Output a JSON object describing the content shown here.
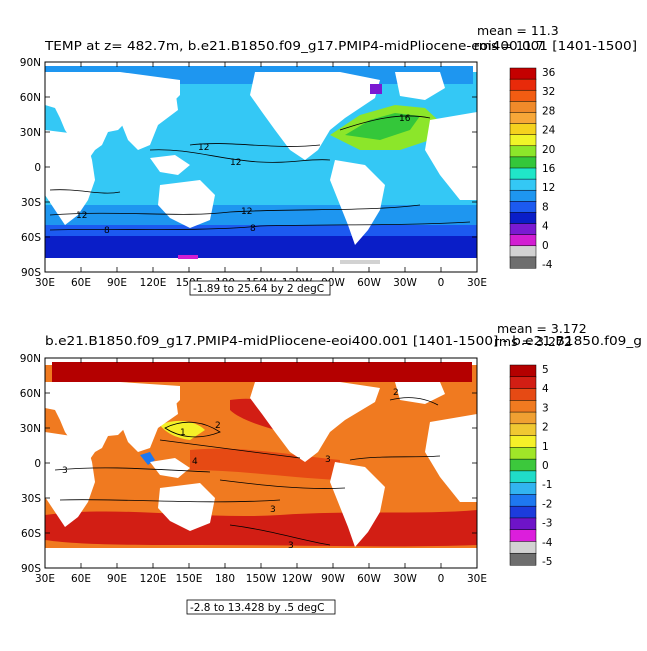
{
  "chart_data": [
    {
      "type": "heatmap",
      "title": "TEMP at z= 482.7m, b.e21.B1850.f09_g17.PMIP4-midPliocene-eoi400.001 [1401-1500]",
      "stats": {
        "mean": "mean = 11.3",
        "rms": "rms = 11.7"
      },
      "range_note": "-1.89 to 25.64 by 2 degC",
      "x_ticks": [
        "30E",
        "60E",
        "90E",
        "120E",
        "150E",
        "180",
        "150W",
        "120W",
        "90W",
        "60W",
        "30W",
        "0",
        "30E"
      ],
      "y_ticks": [
        "90N",
        "60N",
        "30N",
        "0",
        "30S",
        "60S",
        "90S"
      ],
      "xlim_deg_east": [
        30,
        390
      ],
      "ylim_deg_north": [
        -90,
        90
      ],
      "colorbar": {
        "labels": [
          "36",
          "32",
          "28",
          "24",
          "20",
          "16",
          "12",
          "8",
          "4",
          "0",
          "-4"
        ],
        "colors": [
          "#C40000",
          "#E82A0A",
          "#F25C12",
          "#F08A2A",
          "#F7A738",
          "#F5D21E",
          "#F0F528",
          "#8CE62A",
          "#34C73A",
          "#20E6C8",
          "#34C8F5",
          "#1E96F0",
          "#1C5AF0",
          "#0A1EC8",
          "#7A1AD2",
          "#D21ED2",
          "#D2D2D2",
          "#6E6E6E"
        ],
        "color_note": "colors listed top to bottom"
      },
      "contour_labels": [
        "16",
        "12",
        "12",
        "12",
        "12",
        "8",
        "8"
      ]
    },
    {
      "type": "heatmap",
      "title": "b.e21.B1850.f09_g17.PMIP4-midPliocene-eoi400.001 [1401-1500] - b.e21.B1850.f09_g",
      "stats": {
        "mean": "mean = 3.172",
        "rms": "rms = 3.272"
      },
      "range_note": "-2.8 to 13.428 by .5 degC",
      "x_ticks": [
        "30E",
        "60E",
        "90E",
        "120E",
        "150E",
        "180",
        "150W",
        "120W",
        "90W",
        "60W",
        "30W",
        "0",
        "30E"
      ],
      "y_ticks": [
        "90N",
        "60N",
        "30N",
        "0",
        "30S",
        "60S",
        "90S"
      ],
      "xlim_deg_east": [
        30,
        390
      ],
      "ylim_deg_north": [
        -90,
        90
      ],
      "colorbar": {
        "labels": [
          "5",
          "4",
          "3",
          "2",
          "1",
          "0",
          "-1",
          "-2",
          "-3",
          "-4",
          "-5"
        ],
        "colors": [
          "#B40000",
          "#D21E14",
          "#E64A14",
          "#F07A20",
          "#F0A032",
          "#F0C832",
          "#F5F028",
          "#A0E628",
          "#3CC83C",
          "#20DCC8",
          "#32B4F0",
          "#1E78F0",
          "#1C3CDC",
          "#6E14C8",
          "#DC1EDC",
          "#D2D2D2",
          "#6E6E6E"
        ],
        "color_note": "colors listed top to bottom"
      },
      "contour_labels": [
        "2",
        "1",
        "4",
        "3",
        "3",
        "3",
        "3",
        "2"
      ]
    }
  ],
  "palette": {
    "land": "#ffffff",
    "frame": "#000000"
  }
}
